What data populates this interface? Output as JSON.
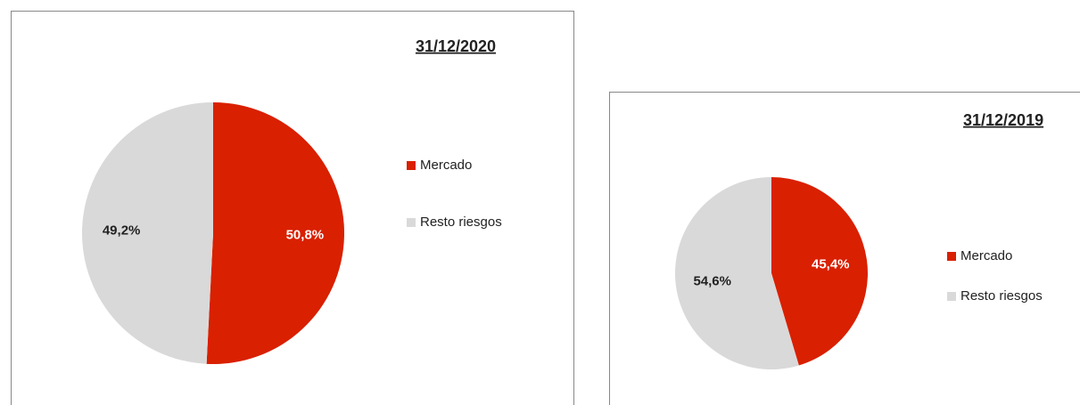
{
  "chart_data": [
    {
      "type": "pie",
      "title": "31/12/2020",
      "categories": [
        "Mercado",
        "Resto riesgos"
      ],
      "values": [
        50.8,
        49.2
      ],
      "value_labels": [
        "50,8%",
        "49,2%"
      ],
      "colors": [
        "#d92000",
        "#d9d9d9"
      ],
      "legend": "right"
    },
    {
      "type": "pie",
      "title": "31/12/2019",
      "categories": [
        "Mercado",
        "Resto riesgos"
      ],
      "values": [
        45.4,
        54.6
      ],
      "value_labels": [
        "45,4%",
        "54,6%"
      ],
      "colors": [
        "#d92000",
        "#d9d9d9"
      ],
      "legend": "right"
    }
  ]
}
